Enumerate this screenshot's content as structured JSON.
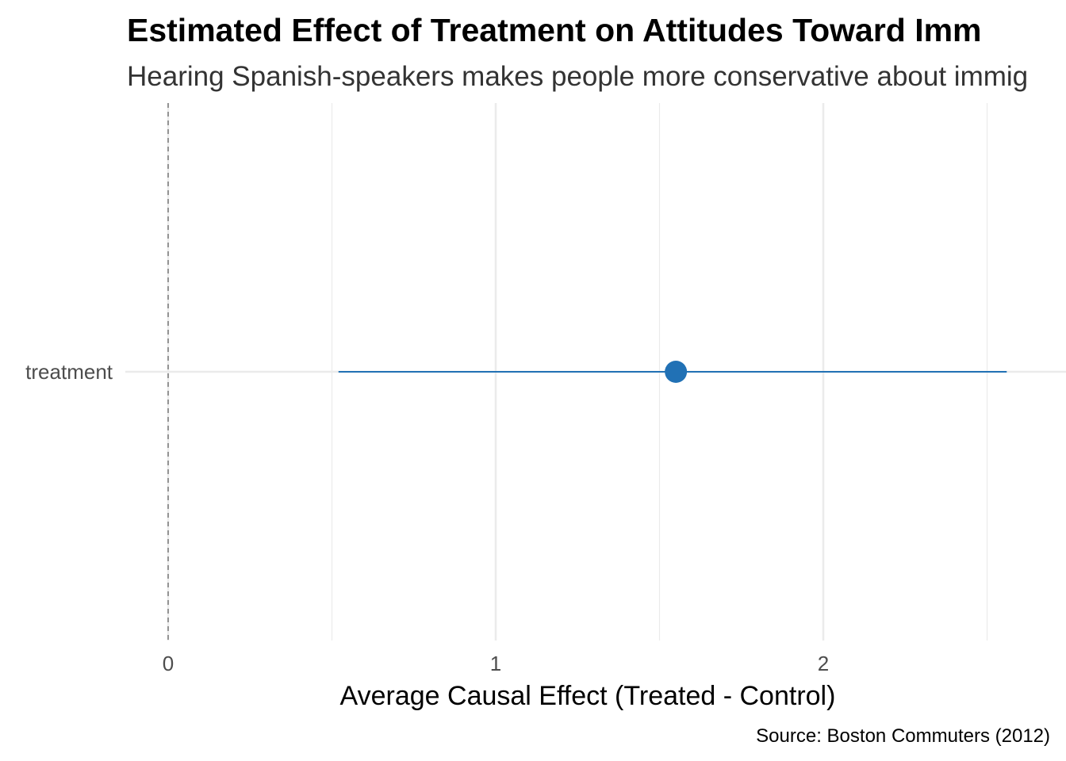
{
  "chart_data": {
    "type": "scatter",
    "title": "Estimated Effect of Treatment on Attitudes Toward Imm",
    "subtitle": "Hearing Spanish-speakers makes people more conservative about immig",
    "xlabel": "Average Causal Effect (Treated - Control)",
    "ylabel": "",
    "caption": "Source: Boston Commuters (2012)",
    "xlim": [
      -0.13,
      2.6
    ],
    "x_ticks": [
      0,
      1,
      2
    ],
    "x_tick_labels": [
      "0",
      "1",
      "2"
    ],
    "x_minor_grid": [
      0.5,
      1.5,
      2.5
    ],
    "categories": [
      "treatment"
    ],
    "points": [
      {
        "term": "treatment",
        "estimate": 1.55,
        "conf_low": 0.52,
        "conf_high": 2.56
      }
    ],
    "reference_line": {
      "x": 0,
      "style": "dashed"
    },
    "grid": true,
    "legend": "none",
    "colors": {
      "point": "#2171b5",
      "interval": "#2171b5",
      "grid": "#ebebeb",
      "reference": "#7f7f7f"
    }
  }
}
